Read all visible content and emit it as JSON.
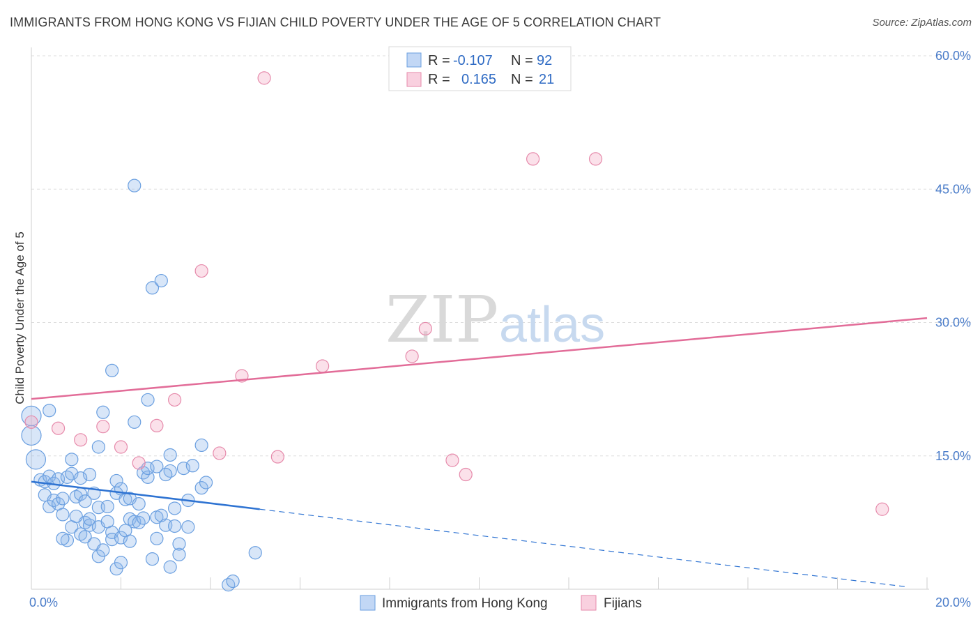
{
  "title": "IMMIGRANTS FROM HONG KONG VS FIJIAN CHILD POVERTY UNDER THE AGE OF 5 CORRELATION CHART",
  "source": "Source: ZipAtlas.com",
  "watermark": {
    "zip": "ZIP",
    "atlas": "atlas"
  },
  "colors": {
    "blue": "#6a9fe0",
    "blue_fill": "rgba(143,182,236,0.35)",
    "blue_line": "#2e73d2",
    "pink": "#e68aab",
    "pink_fill": "rgba(244,170,196,0.35)",
    "pink_line": "#e26c98",
    "axis_text": "#4a7cc9"
  },
  "legend": {
    "rows": [
      {
        "r_label": "R =",
        "r_value": "-0.107",
        "n_label": "N =",
        "n_value": "92"
      },
      {
        "r_label": "R =",
        "r_value": "0.165",
        "n_label": "N =",
        "n_value": "21"
      }
    ]
  },
  "chart_data": {
    "type": "scatter",
    "ylabel": "Child Poverty Under the Age of 5",
    "xlim": [
      0,
      20
    ],
    "ylim": [
      0,
      60
    ],
    "x_ticks": [
      {
        "value": 0,
        "label": "0.0%"
      },
      {
        "value": 20,
        "label": "20.0%"
      }
    ],
    "y_ticks": [
      {
        "value": 15,
        "label": "15.0%"
      },
      {
        "value": 30,
        "label": "30.0%"
      },
      {
        "value": 45,
        "label": "45.0%"
      },
      {
        "value": 60,
        "label": "60.0%"
      }
    ],
    "grid": true,
    "legend_position": "top-center",
    "series": [
      {
        "name": "Immigrants from Hong Kong",
        "r": -0.107,
        "n": 92,
        "trend": {
          "x0": 0,
          "y0": 12.1,
          "x1": 5.1,
          "y1": 9.0,
          "dash_x1": 19.5,
          "dash_y1": 0.3
        },
        "points": [
          [
            0.0,
            19.5
          ],
          [
            0.0,
            17.3
          ],
          [
            0.1,
            14.6
          ],
          [
            0.4,
            20.1
          ],
          [
            0.2,
            12.3
          ],
          [
            0.3,
            12.1
          ],
          [
            0.4,
            12.7
          ],
          [
            0.5,
            11.9
          ],
          [
            0.6,
            12.4
          ],
          [
            0.3,
            10.6
          ],
          [
            0.4,
            9.3
          ],
          [
            0.5,
            10.0
          ],
          [
            0.6,
            9.6
          ],
          [
            0.7,
            8.4
          ],
          [
            0.8,
            12.6
          ],
          [
            0.7,
            10.2
          ],
          [
            0.9,
            13.0
          ],
          [
            0.9,
            14.6
          ],
          [
            0.9,
            7.0
          ],
          [
            1.0,
            10.4
          ],
          [
            1.1,
            10.7
          ],
          [
            1.1,
            6.2
          ],
          [
            1.2,
            5.9
          ],
          [
            1.2,
            7.5
          ],
          [
            0.8,
            5.5
          ],
          [
            1.3,
            7.2
          ],
          [
            1.3,
            7.9
          ],
          [
            1.4,
            10.8
          ],
          [
            1.3,
            12.9
          ],
          [
            1.5,
            7.0
          ],
          [
            1.4,
            5.1
          ],
          [
            1.5,
            9.2
          ],
          [
            1.5,
            16.0
          ],
          [
            1.6,
            19.9
          ],
          [
            1.5,
            3.7
          ],
          [
            1.6,
            4.4
          ],
          [
            1.7,
            7.6
          ],
          [
            1.7,
            9.3
          ],
          [
            1.8,
            6.4
          ],
          [
            1.8,
            5.6
          ],
          [
            1.8,
            24.6
          ],
          [
            1.9,
            10.8
          ],
          [
            1.9,
            2.3
          ],
          [
            1.9,
            12.2
          ],
          [
            2.0,
            5.8
          ],
          [
            2.0,
            3.0
          ],
          [
            2.1,
            6.6
          ],
          [
            2.1,
            10.1
          ],
          [
            2.2,
            7.9
          ],
          [
            2.2,
            10.2
          ],
          [
            2.2,
            5.4
          ],
          [
            2.3,
            7.6
          ],
          [
            2.3,
            18.8
          ],
          [
            2.4,
            7.5
          ],
          [
            2.3,
            45.4
          ],
          [
            2.5,
            13.1
          ],
          [
            2.5,
            8.0
          ],
          [
            2.6,
            21.3
          ],
          [
            2.6,
            12.6
          ],
          [
            2.6,
            13.6
          ],
          [
            2.7,
            3.4
          ],
          [
            2.7,
            33.9
          ],
          [
            2.8,
            8.1
          ],
          [
            2.8,
            5.7
          ],
          [
            2.9,
            34.7
          ],
          [
            2.8,
            13.8
          ],
          [
            2.9,
            8.3
          ],
          [
            3.0,
            7.2
          ],
          [
            3.1,
            2.5
          ],
          [
            3.1,
            13.3
          ],
          [
            3.1,
            15.1
          ],
          [
            3.2,
            7.1
          ],
          [
            3.2,
            9.1
          ],
          [
            3.3,
            3.9
          ],
          [
            3.3,
            5.1
          ],
          [
            3.4,
            13.6
          ],
          [
            3.5,
            10.0
          ],
          [
            3.5,
            7.0
          ],
          [
            3.6,
            13.9
          ],
          [
            3.8,
            11.4
          ],
          [
            3.8,
            16.2
          ],
          [
            3.9,
            12.0
          ],
          [
            4.4,
            0.5
          ],
          [
            4.5,
            0.9
          ],
          [
            5.0,
            4.1
          ],
          [
            0.7,
            5.7
          ],
          [
            1.0,
            8.2
          ],
          [
            1.2,
            9.9
          ],
          [
            2.0,
            11.3
          ],
          [
            2.4,
            9.6
          ],
          [
            3.0,
            12.9
          ],
          [
            1.1,
            12.5
          ]
        ]
      },
      {
        "name": "Fijians",
        "r": 0.165,
        "n": 21,
        "trend": {
          "x0": 0,
          "y0": 21.4,
          "x1": 20,
          "y1": 30.5
        },
        "points": [
          [
            0.0,
            18.8
          ],
          [
            0.6,
            18.1
          ],
          [
            1.1,
            16.8
          ],
          [
            1.6,
            18.3
          ],
          [
            2.0,
            16.0
          ],
          [
            2.4,
            14.2
          ],
          [
            2.8,
            18.4
          ],
          [
            3.2,
            21.3
          ],
          [
            3.8,
            35.8
          ],
          [
            4.2,
            15.3
          ],
          [
            4.7,
            24.0
          ],
          [
            5.2,
            57.5
          ],
          [
            5.5,
            14.9
          ],
          [
            6.5,
            25.1
          ],
          [
            8.5,
            26.2
          ],
          [
            8.8,
            29.3
          ],
          [
            9.4,
            14.5
          ],
          [
            9.7,
            12.9
          ],
          [
            11.2,
            48.4
          ],
          [
            12.6,
            48.4
          ],
          [
            19.0,
            9.0
          ]
        ]
      }
    ]
  }
}
